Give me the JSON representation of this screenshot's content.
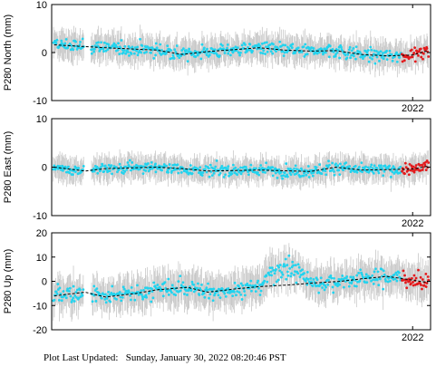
{
  "footer": {
    "label": "Plot Last Updated:",
    "timestamp": "Sunday, January 30, 2022 08:20:46 PST"
  },
  "colors": {
    "observation": "#22d3ee",
    "recent": "#e31a1c",
    "errorbar": "#c8c8c8",
    "model": "#000000"
  },
  "chart_data": [
    {
      "type": "scatter",
      "ylabel": "P280 North (mm)",
      "ylim": [
        -10,
        10
      ],
      "yticks": [
        10,
        0,
        -10
      ],
      "x_tick_label": "2022",
      "x_tick_date": 2022.0,
      "xlim": [
        2014.95,
        2022.35
      ],
      "model_trend": [
        [
          2015.0,
          1.6
        ],
        [
          2016.0,
          1.0
        ],
        [
          2017.0,
          0.5
        ],
        [
          2017.5,
          -0.4
        ],
        [
          2018.0,
          0.2
        ],
        [
          2019.0,
          1.0
        ],
        [
          2019.5,
          0.5
        ],
        [
          2020.0,
          0.3
        ],
        [
          2020.5,
          0.4
        ],
        [
          2021.0,
          -0.4
        ],
        [
          2021.5,
          -0.7
        ],
        [
          2022.0,
          -0.5
        ],
        [
          2022.3,
          0.4
        ]
      ],
      "gaps": [
        [
          2015.58,
          2015.72
        ]
      ],
      "recent_start": 2021.78,
      "scatter": 1.6
    },
    {
      "type": "scatter",
      "ylabel": "P280 East (mm)",
      "ylim": [
        -10,
        10
      ],
      "yticks": [
        10,
        0,
        -10
      ],
      "x_tick_label": "2022",
      "x_tick_date": 2022.0,
      "xlim": [
        2014.95,
        2022.35
      ],
      "model_trend": [
        [
          2015.0,
          0.0
        ],
        [
          2015.6,
          -0.8
        ],
        [
          2016.0,
          -0.3
        ],
        [
          2017.0,
          0.0
        ],
        [
          2017.5,
          -0.3
        ],
        [
          2018.0,
          -0.8
        ],
        [
          2019.0,
          -0.6
        ],
        [
          2020.0,
          -0.9
        ],
        [
          2020.5,
          0.0
        ],
        [
          2021.0,
          -0.6
        ],
        [
          2021.5,
          -0.5
        ],
        [
          2022.0,
          -0.4
        ],
        [
          2022.3,
          0.2
        ]
      ],
      "gaps": [
        [
          2015.58,
          2015.72
        ]
      ],
      "recent_start": 2021.78,
      "scatter": 1.4
    },
    {
      "type": "scatter",
      "ylabel": "P280 Up (mm)",
      "ylim": [
        -20,
        20
      ],
      "yticks": [
        20,
        10,
        0,
        -10,
        -20
      ],
      "x_tick_label": "2022",
      "x_tick_date": 2022.0,
      "xlim": [
        2014.95,
        2022.35
      ],
      "model_trend": [
        [
          2015.0,
          -6.0
        ],
        [
          2015.6,
          -4.5
        ],
        [
          2016.0,
          -6.5
        ],
        [
          2016.6,
          -5.0
        ],
        [
          2017.0,
          -3.5
        ],
        [
          2017.6,
          -2.5
        ],
        [
          2018.0,
          -4.5
        ],
        [
          2018.6,
          -3.0
        ],
        [
          2019.0,
          -2.2
        ],
        [
          2019.6,
          -1.5
        ],
        [
          2020.0,
          -0.8
        ],
        [
          2020.6,
          0.0
        ],
        [
          2021.0,
          1.0
        ],
        [
          2021.5,
          2.0
        ],
        [
          2022.0,
          0.5
        ],
        [
          2022.3,
          -0.5
        ]
      ],
      "gaps": [
        [
          2015.58,
          2015.72
        ]
      ],
      "recent_start": 2021.78,
      "scatter": 4.0,
      "bump": [
        2019.0,
        2020.0,
        9.0
      ]
    }
  ]
}
